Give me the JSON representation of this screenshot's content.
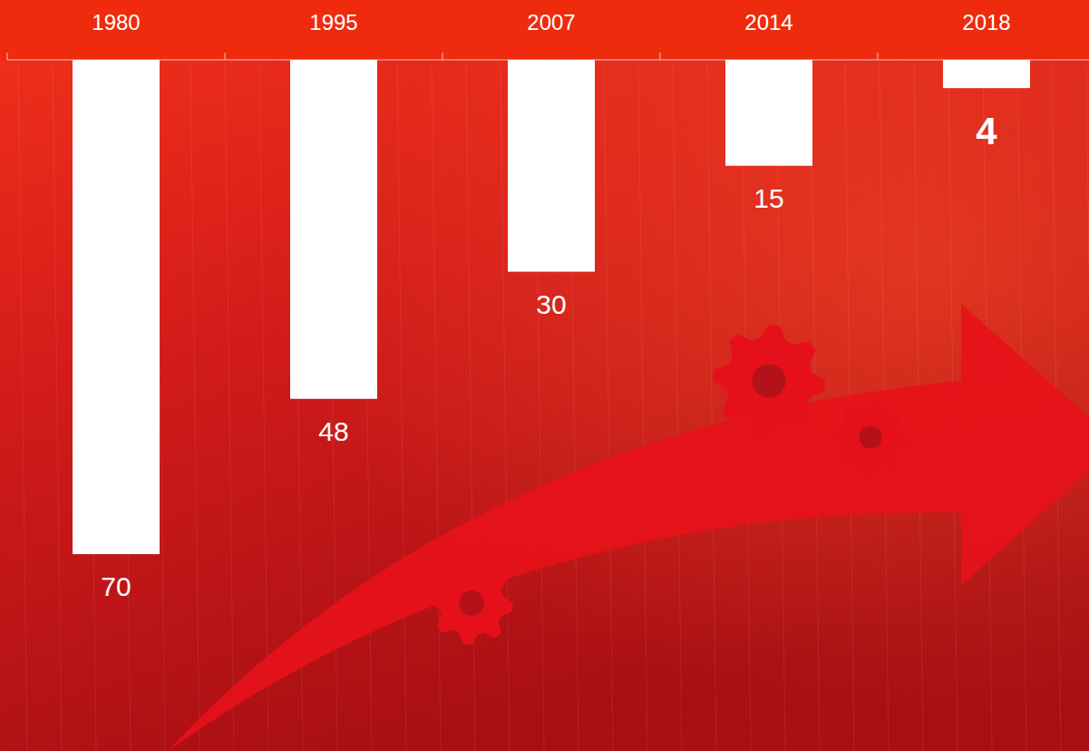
{
  "chart_data": {
    "type": "bar",
    "categories": [
      "1980",
      "1995",
      "2007",
      "2014",
      "2018"
    ],
    "values": [
      70,
      48,
      30,
      15,
      4
    ],
    "color": "#ffffff",
    "ylim": [
      0,
      70
    ],
    "data_labels": true,
    "tick_labels": "x"
  }
}
